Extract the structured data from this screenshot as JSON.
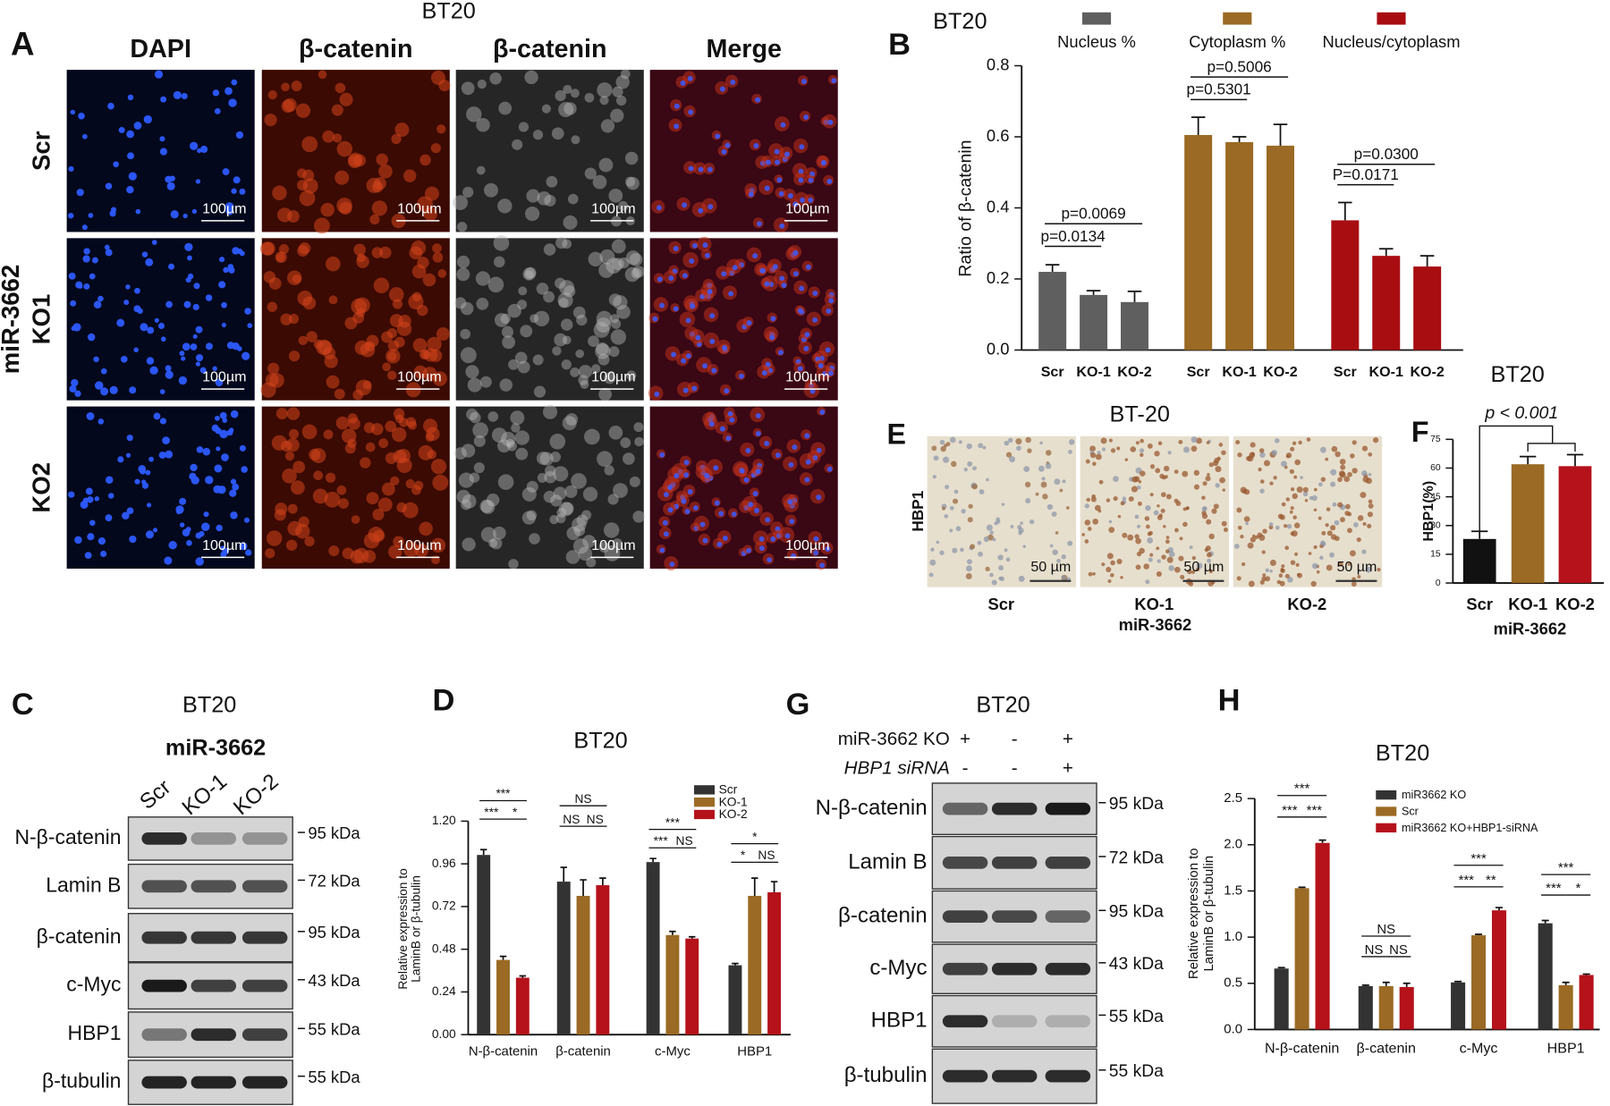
{
  "panels": {
    "A": {
      "label": "A",
      "title": "BT20",
      "columns": [
        "DAPI",
        "β-catenin",
        "β-catenin",
        "Merge"
      ],
      "rows": [
        "Scr",
        "KO1",
        "KO2"
      ],
      "row_group": "miR-3662",
      "scale_bar": "100µm"
    },
    "C": {
      "label": "C",
      "title": "BT20",
      "group": "miR-3662",
      "lanes": [
        "Scr",
        "KO-1",
        "KO-2"
      ],
      "blots": [
        {
          "protein": "N-β-catenin",
          "size": "95 kDa"
        },
        {
          "protein": "Lamin B",
          "size": "72 kDa"
        },
        {
          "protein": "β-catenin",
          "size": "95 kDa"
        },
        {
          "protein": "c-Myc",
          "size": "43 kDa"
        },
        {
          "protein": "HBP1",
          "size": "55 kDa"
        },
        {
          "protein": "β-tubulin",
          "size": "55 kDa"
        }
      ]
    },
    "E": {
      "label": "E",
      "title": "BT-20",
      "row_label": "HBP1",
      "columns": [
        "Scr",
        "KO-1",
        "KO-2"
      ],
      "group": "miR-3662",
      "scale_bar": "50 µm"
    },
    "G": {
      "label": "G",
      "title": "BT20",
      "conditions": [
        {
          "name": "miR-3662 KO",
          "signs": [
            "+",
            "-",
            "+"
          ]
        },
        {
          "name": "HBP1 siRNA",
          "signs": [
            "-",
            "-",
            "+"
          ]
        }
      ],
      "blots": [
        {
          "protein": "N-β-catenin",
          "size": "95 kDa"
        },
        {
          "protein": "Lamin B",
          "size": "72 kDa"
        },
        {
          "protein": "β-catenin",
          "size": "95 kDa"
        },
        {
          "protein": "c-Myc",
          "size": "43 kDa"
        },
        {
          "protein": "HBP1",
          "size": "55 kDa"
        },
        {
          "protein": "β-tubulin",
          "size": "55 kDa"
        }
      ]
    }
  },
  "chart_data": [
    {
      "type": "bar",
      "panel": "B",
      "title": "BT20",
      "ylabel": "Ratio of β-catenin",
      "categories": [
        "Scr",
        "KO-1",
        "KO-2"
      ],
      "series": [
        {
          "name": "Nucleus %",
          "color": "#5f5f5f",
          "values": [
            0.22,
            0.155,
            0.135
          ],
          "errors": [
            0.02,
            0.012,
            0.03
          ]
        },
        {
          "name": "Cytoplasm %",
          "color": "#9b6a24",
          "values": [
            0.605,
            0.585,
            0.575
          ],
          "errors": [
            0.05,
            0.015,
            0.06
          ]
        },
        {
          "name": "Nucleus/cytoplasm",
          "color": "#a80d12",
          "values": [
            0.365,
            0.265,
            0.235
          ],
          "errors": [
            0.05,
            0.02,
            0.03
          ]
        }
      ],
      "ylim": [
        0,
        0.8
      ],
      "yticks": [
        {
          "value": 0,
          "label": "0.0"
        },
        0.2,
        0.4,
        0.6,
        0.8
      ],
      "annotations": [
        "p=0.0069",
        "p=0.0134",
        "p=0.5006",
        "p=0.5301",
        "p=0.0300",
        "P=0.0171"
      ]
    },
    {
      "type": "bar",
      "panel": "D",
      "title": "BT20",
      "ylabel": [
        "Relative expression to",
        "LaminB or β-tubulin"
      ],
      "categories": [
        "N-β-catenin",
        "β-catenin",
        "c-Myc",
        "HBP1"
      ],
      "series": [
        {
          "name": "Scr",
          "color": "#333333",
          "values": [
            1.01,
            0.86,
            0.97,
            0.39
          ],
          "errors": [
            0.03,
            0.08,
            0.02,
            0.01
          ]
        },
        {
          "name": "KO-1",
          "color": "#9b6a24",
          "values": [
            0.42,
            0.78,
            0.56,
            0.78
          ],
          "errors": [
            0.02,
            0.09,
            0.02,
            0.1
          ]
        },
        {
          "name": "KO-2",
          "color": "#b5121b",
          "values": [
            0.32,
            0.84,
            0.54,
            0.8
          ],
          "errors": [
            0.01,
            0.04,
            0.01,
            0.06
          ]
        }
      ],
      "ylim": [
        0,
        1.2
      ],
      "yticks": [
        {
          "value": 0,
          "label": "0.00"
        },
        0.24,
        0.48,
        0.72,
        0.96,
        {
          "value": 1.2,
          "label": "1.20"
        }
      ],
      "annotations": [
        "***",
        "***",
        "*",
        "NS",
        "NS",
        "NS",
        "***",
        "***",
        "NS",
        "*",
        "*",
        "NS"
      ]
    },
    {
      "type": "bar",
      "panel": "F",
      "title": "BT20",
      "ylabel": "HBP1(%)",
      "xlabel": "miR-3662",
      "categories": [
        "Scr",
        "KO-1",
        "KO-2"
      ],
      "values": [
        23,
        62,
        61
      ],
      "errors": [
        4,
        4,
        6
      ],
      "colors": [
        "#111111",
        "#9b6a24",
        "#b5121b"
      ],
      "ylim": [
        0,
        75
      ],
      "yticks": [
        0,
        15,
        30,
        45,
        60,
        75
      ],
      "annotations": [
        "p < 0.001"
      ]
    },
    {
      "type": "bar",
      "panel": "H",
      "title": "BT20",
      "ylabel": [
        "Relative expression to",
        "LaminB or β-tubulin"
      ],
      "categories": [
        "N-β-catenin",
        "β-catenin",
        "c-Myc",
        "HBP1"
      ],
      "series": [
        {
          "name": "miR3662 KO",
          "color": "#333333",
          "values": [
            0.66,
            0.47,
            0.51,
            1.15
          ],
          "errors": [
            0.01,
            0.01,
            0.01,
            0.03
          ]
        },
        {
          "name": "Scr",
          "color": "#9b6a24",
          "values": [
            1.53,
            0.47,
            1.02,
            0.48
          ],
          "errors": [
            0.01,
            0.04,
            0.01,
            0.03
          ]
        },
        {
          "name": "miR3662 KO+HBP1-siRNA",
          "color": "#b5121b",
          "values": [
            2.02,
            0.46,
            1.29,
            0.59
          ],
          "errors": [
            0.03,
            0.04,
            0.03,
            0.01
          ]
        }
      ],
      "ylim": [
        0,
        2.5
      ],
      "yticks": [
        {
          "value": 0,
          "label": "0.0"
        },
        0.5,
        {
          "value": 1,
          "label": "1.0"
        },
        1.5,
        {
          "value": 2,
          "label": "2.0"
        },
        2.5
      ],
      "annotations": [
        "***",
        "***",
        "***",
        "NS",
        "NS",
        "NS",
        "***",
        "***",
        "**",
        "***",
        "***",
        "*"
      ]
    }
  ]
}
